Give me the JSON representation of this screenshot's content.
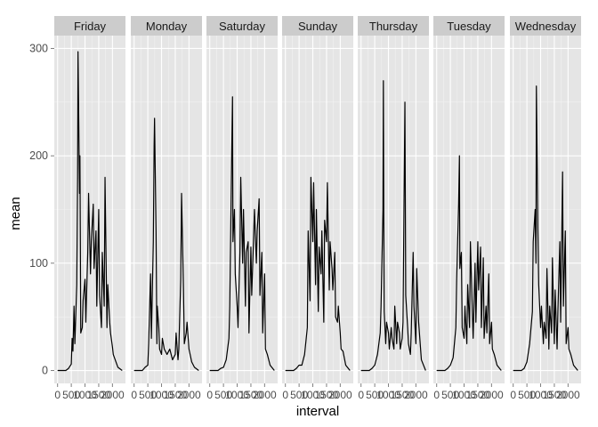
{
  "chart_data": {
    "type": "line",
    "facet_by": "weekday",
    "xlabel": "interval",
    "ylabel": "mean",
    "xlim": [
      -120,
      2475
    ],
    "ylim": [
      -12,
      312
    ],
    "x_ticks": [
      0,
      500,
      1000,
      1500,
      2000
    ],
    "x_tick_labels": [
      "0",
      "500",
      "1000",
      "1500",
      "2000"
    ],
    "y_ticks": [
      0,
      100,
      200,
      300
    ],
    "y_tick_labels": [
      "0",
      "100",
      "200",
      "300"
    ],
    "grid": true,
    "colors": {
      "panel_bg": "#e5e5e5",
      "grid_major": "#ffffff",
      "grid_minor": "#f2f2f2",
      "strip_bg": "#cccccc",
      "line": "#000000"
    },
    "facets": [
      {
        "label": "Friday",
        "x": [
          0,
          300,
          400,
          500,
          530,
          560,
          600,
          630,
          700,
          730,
          745,
          800,
          815,
          830,
          845,
          900,
          930,
          1000,
          1030,
          1100,
          1130,
          1200,
          1230,
          1300,
          1330,
          1400,
          1430,
          1500,
          1530,
          1600,
          1630,
          1700,
          1730,
          1800,
          1830,
          1900,
          1930,
          2000,
          2030,
          2100,
          2200,
          2355
        ],
        "y": [
          0,
          0,
          2,
          6,
          30,
          18,
          60,
          25,
          80,
          180,
          297,
          165,
          200,
          120,
          35,
          40,
          65,
          85,
          45,
          110,
          165,
          90,
          120,
          155,
          95,
          130,
          60,
          150,
          70,
          40,
          110,
          60,
          180,
          40,
          80,
          45,
          35,
          22,
          15,
          10,
          3,
          0
        ]
      },
      {
        "label": "Monday",
        "x": [
          0,
          300,
          400,
          500,
          530,
          600,
          630,
          700,
          730,
          745,
          800,
          815,
          830,
          845,
          900,
          930,
          1000,
          1030,
          1100,
          1200,
          1300,
          1400,
          1500,
          1530,
          1600,
          1630,
          1700,
          1730,
          1800,
          1830,
          1900,
          1930,
          2000,
          2100,
          2200,
          2355
        ],
        "y": [
          0,
          0,
          3,
          5,
          25,
          90,
          30,
          120,
          210,
          235,
          130,
          80,
          25,
          60,
          40,
          20,
          15,
          30,
          20,
          15,
          20,
          10,
          15,
          35,
          10,
          20,
          85,
          165,
          75,
          25,
          35,
          45,
          20,
          8,
          3,
          0
        ]
      },
      {
        "label": "Saturday",
        "x": [
          0,
          300,
          400,
          500,
          600,
          700,
          730,
          800,
          830,
          845,
          900,
          930,
          1000,
          1030,
          1100,
          1130,
          1200,
          1230,
          1300,
          1330,
          1400,
          1430,
          1500,
          1530,
          1600,
          1630,
          1700,
          1730,
          1800,
          1830,
          1900,
          1930,
          2000,
          2030,
          2100,
          2200,
          2355
        ],
        "y": [
          0,
          0,
          2,
          3,
          10,
          30,
          60,
          200,
          255,
          120,
          150,
          90,
          60,
          40,
          110,
          180,
          100,
          150,
          60,
          110,
          120,
          35,
          115,
          70,
          125,
          150,
          100,
          130,
          160,
          70,
          110,
          35,
          90,
          20,
          15,
          5,
          0
        ]
      },
      {
        "label": "Sunday",
        "x": [
          0,
          300,
          400,
          500,
          600,
          700,
          800,
          830,
          900,
          930,
          1000,
          1030,
          1100,
          1130,
          1200,
          1230,
          1300,
          1330,
          1400,
          1430,
          1500,
          1530,
          1600,
          1630,
          1700,
          1730,
          1800,
          1830,
          1900,
          1930,
          2000,
          2030,
          2100,
          2200,
          2355
        ],
        "y": [
          0,
          0,
          2,
          5,
          5,
          15,
          40,
          130,
          65,
          180,
          120,
          175,
          80,
          150,
          55,
          115,
          90,
          130,
          45,
          140,
          120,
          175,
          75,
          120,
          95,
          75,
          110,
          50,
          45,
          60,
          35,
          20,
          18,
          5,
          0
        ]
      },
      {
        "label": "Thursday",
        "x": [
          0,
          300,
          400,
          500,
          600,
          700,
          730,
          800,
          815,
          830,
          845,
          900,
          930,
          1000,
          1030,
          1100,
          1130,
          1200,
          1230,
          1300,
          1330,
          1400,
          1430,
          1500,
          1530,
          1600,
          1630,
          1700,
          1730,
          1800,
          1830,
          1900,
          1930,
          2000,
          2030,
          2100,
          2200,
          2355
        ],
        "y": [
          0,
          0,
          2,
          5,
          15,
          35,
          60,
          150,
          270,
          140,
          55,
          25,
          45,
          35,
          20,
          40,
          30,
          20,
          60,
          25,
          45,
          35,
          20,
          30,
          45,
          250,
          70,
          40,
          25,
          15,
          35,
          110,
          60,
          25,
          95,
          45,
          10,
          0
        ]
      },
      {
        "label": "Tuesday",
        "x": [
          0,
          300,
          400,
          500,
          600,
          700,
          730,
          800,
          830,
          845,
          900,
          930,
          1000,
          1030,
          1100,
          1130,
          1200,
          1230,
          1300,
          1330,
          1400,
          1430,
          1500,
          1530,
          1600,
          1630,
          1700,
          1730,
          1800,
          1830,
          1900,
          1930,
          2000,
          2030,
          2100,
          2200,
          2355
        ],
        "y": [
          0,
          0,
          2,
          5,
          12,
          40,
          85,
          155,
          200,
          95,
          110,
          40,
          30,
          60,
          25,
          80,
          40,
          120,
          55,
          30,
          100,
          45,
          120,
          75,
          115,
          40,
          105,
          30,
          60,
          35,
          90,
          25,
          45,
          20,
          15,
          5,
          0
        ]
      },
      {
        "label": "Wednesday",
        "x": [
          0,
          300,
          400,
          500,
          600,
          700,
          730,
          800,
          830,
          845,
          900,
          930,
          1000,
          1030,
          1100,
          1130,
          1200,
          1230,
          1300,
          1330,
          1400,
          1430,
          1500,
          1530,
          1600,
          1630,
          1700,
          1730,
          1800,
          1830,
          1900,
          1930,
          2000,
          2030,
          2100,
          2200,
          2355
        ],
        "y": [
          0,
          0,
          2,
          8,
          25,
          55,
          120,
          150,
          100,
          265,
          130,
          80,
          40,
          60,
          25,
          45,
          30,
          95,
          20,
          60,
          35,
          105,
          25,
          75,
          20,
          55,
          120,
          45,
          185,
          60,
          130,
          25,
          40,
          20,
          15,
          5,
          0
        ]
      }
    ]
  }
}
